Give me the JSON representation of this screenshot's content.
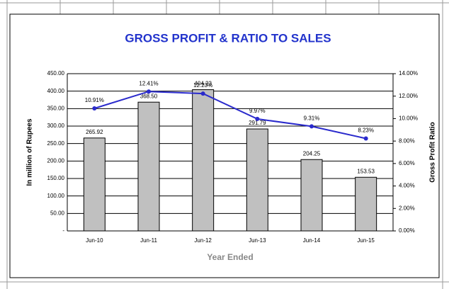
{
  "chart_data": {
    "type": "bar",
    "title": "GROSS PROFIT & RATIO TO SALES",
    "xlabel": "Year Ended",
    "ylabel": "In million of Rupees",
    "y2label": "Gross Profit Ratio",
    "categories": [
      "Jun-10",
      "Jun-11",
      "Jun-12",
      "Jun-13",
      "Jun-14",
      "Jun-15"
    ],
    "series": [
      {
        "name": "Gross Profit",
        "type": "bar",
        "color": "#c0c0c0",
        "values": [
          265.92,
          368.5,
          404.23,
          291.79,
          204.25,
          153.53
        ],
        "value_labels": [
          "265.92",
          "368.50",
          "404.23",
          "291.79",
          "204.25",
          "153.53"
        ]
      },
      {
        "name": "Ratio to Sales",
        "type": "line",
        "axis": "y2",
        "color": "#2a2acc",
        "values": [
          10.91,
          12.41,
          12.23,
          9.97,
          9.31,
          8.23
        ],
        "value_labels": [
          "10.91%",
          "12.41%",
          "12.23%",
          "9.97%",
          "9.31%",
          "8.23%"
        ]
      }
    ],
    "ylim": [
      0,
      450
    ],
    "yticks": [
      {
        "value": 0,
        "label": "-"
      },
      {
        "value": 50,
        "label": "50.00"
      },
      {
        "value": 100,
        "label": "100.00"
      },
      {
        "value": 150,
        "label": "150.00"
      },
      {
        "value": 200,
        "label": "200.00"
      },
      {
        "value": 250,
        "label": "250.00"
      },
      {
        "value": 300,
        "label": "300.00"
      },
      {
        "value": 350,
        "label": "350.00"
      },
      {
        "value": 400,
        "label": "400.00"
      },
      {
        "value": 450,
        "label": "450.00"
      }
    ],
    "y2lim": [
      0,
      14
    ],
    "y2ticks": [
      {
        "value": 0,
        "label": "0.00%"
      },
      {
        "value": 2,
        "label": "2.00%"
      },
      {
        "value": 4,
        "label": "4.00%"
      },
      {
        "value": 6,
        "label": "6.00%"
      },
      {
        "value": 8,
        "label": "8.00%"
      },
      {
        "value": 10,
        "label": "10.00%"
      },
      {
        "value": 12,
        "label": "12.00%"
      },
      {
        "value": 14,
        "label": "14.00%"
      }
    ],
    "grid": true
  }
}
